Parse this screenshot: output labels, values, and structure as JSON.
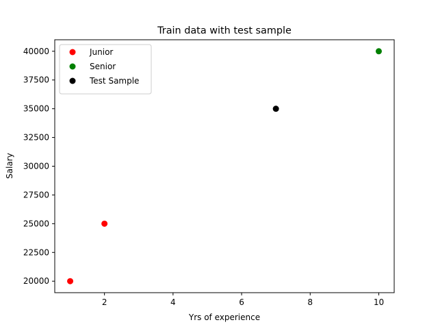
{
  "chart_data": {
    "type": "scatter",
    "title": "Train data with test sample",
    "xlabel": "Yrs of experience",
    "ylabel": "Salary",
    "xlim": [
      0.55,
      10.45
    ],
    "ylim": [
      19000,
      41000
    ],
    "xticks": [
      2,
      4,
      6,
      8,
      10
    ],
    "yticks": [
      20000,
      22500,
      25000,
      27500,
      30000,
      32500,
      35000,
      37500,
      40000
    ],
    "grid": false,
    "legend_position": "top-left",
    "series": [
      {
        "name": "Junior",
        "color": "#ff0000",
        "points": [
          {
            "x": 1,
            "y": 20000
          },
          {
            "x": 2,
            "y": 25000
          }
        ]
      },
      {
        "name": "Senior",
        "color": "#008000",
        "points": [
          {
            "x": 10,
            "y": 40000
          }
        ]
      },
      {
        "name": "Test Sample",
        "color": "#000000",
        "points": [
          {
            "x": 7,
            "y": 35000
          }
        ]
      }
    ]
  }
}
